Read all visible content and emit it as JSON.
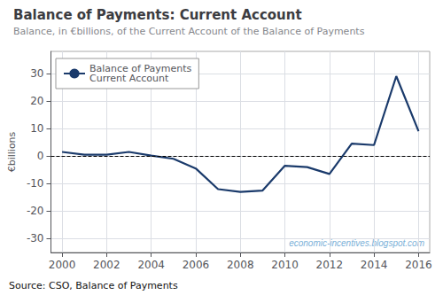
{
  "chart_data": {
    "type": "line",
    "title": "Balance of Payments: Current Account",
    "subtitle": "Balance, in €billions, of the Current Account of the Balance of Payments",
    "ylabel": "€billions",
    "source": "Source: CSO, Balance of Payments",
    "watermark": "economic-incentives.blogspot.com",
    "x": [
      2000,
      2001,
      2002,
      2003,
      2004,
      2005,
      2006,
      2007,
      2008,
      2009,
      2010,
      2011,
      2012,
      2013,
      2014,
      2015,
      2016
    ],
    "series": [
      {
        "name": "Balance of Payments\nCurrent Account",
        "color": "#1a3a6b",
        "values": [
          1.5,
          0.5,
          0.5,
          1.5,
          0.2,
          -1.0,
          -4.5,
          -12.0,
          -13.0,
          -12.5,
          -3.5,
          -4.0,
          -6.5,
          4.5,
          4.0,
          29.0,
          9.0
        ]
      }
    ],
    "xlim": [
      1999.5,
      2016.5
    ],
    "xticks": [
      2000,
      2002,
      2004,
      2006,
      2008,
      2010,
      2012,
      2014,
      2016
    ],
    "ylim": [
      -35,
      38
    ],
    "yticks": [
      -30,
      -20,
      -10,
      0,
      10,
      20,
      30
    ],
    "hlines": [
      0
    ],
    "grid": true,
    "legend": "upper left"
  }
}
